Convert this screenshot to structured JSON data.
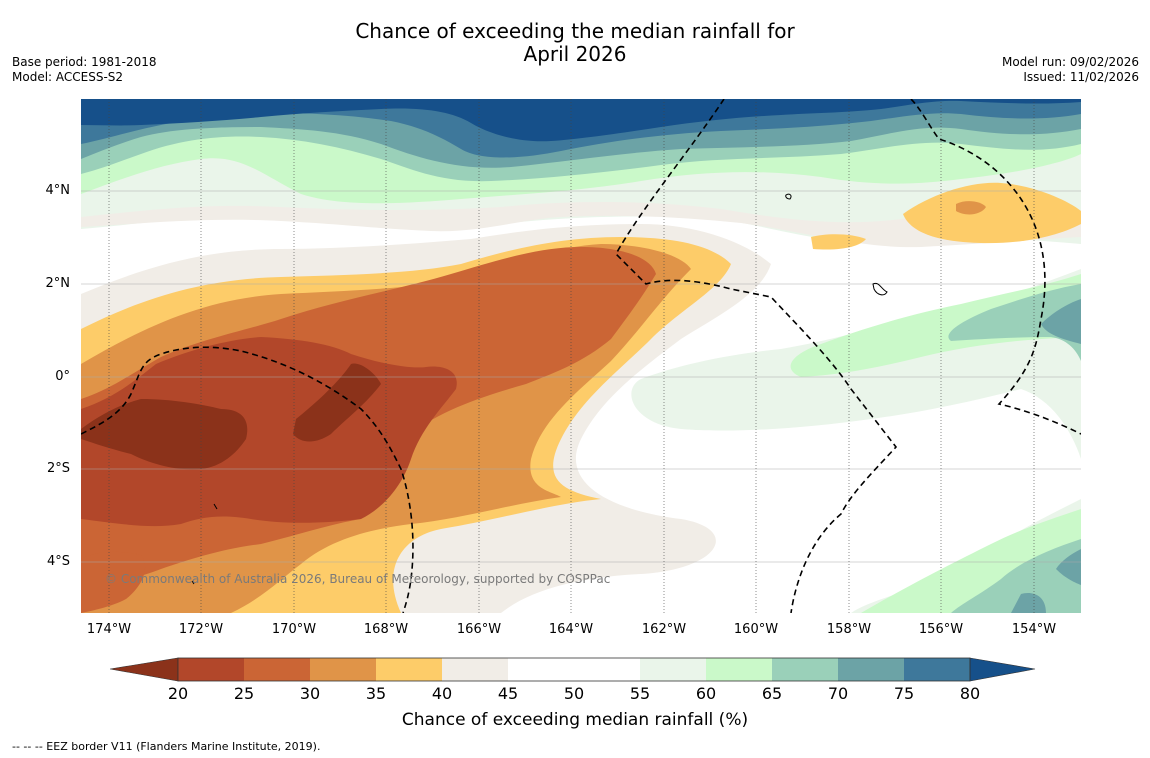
{
  "header": {
    "title_line1": "Chance of exceeding the median rainfall for",
    "title_line2": "April 2026",
    "base_period": "Base period: 1981-2018",
    "model": "Model: ACCESS-S2",
    "model_run": "Model run: 09/02/2026",
    "issued": "Issued: 11/02/2026"
  },
  "map": {
    "lat_labels": [
      "4°N",
      "2°N",
      "0°",
      "2°S",
      "4°S"
    ],
    "lon_labels": [
      "174°W",
      "172°W",
      "170°W",
      "168°W",
      "166°W",
      "164°W",
      "162°W",
      "160°W",
      "158°W",
      "156°W",
      "154°W"
    ],
    "copyright": "© Commonwealth of Australia 2026, Bureau of Meteorology, supported by COSPPac",
    "colors": {
      "lt20": "#8b321a",
      "c20_25": "#b2472a",
      "c25_30": "#cb6535",
      "c30_35": "#e09448",
      "c35_40": "#fdcc69",
      "c40_45": "#f1ede7",
      "c45_55": "#ffffff",
      "c55_60": "#eaf5ea",
      "c60_65": "#caf9c9",
      "c65_70": "#9ad0b9",
      "c70_75": "#6ca3a6",
      "c75_80": "#3e789b",
      "gt80": "#16508a"
    }
  },
  "colorbar": {
    "ticks": [
      "20",
      "25",
      "30",
      "35",
      "40",
      "45",
      "50",
      "55",
      "60",
      "65",
      "70",
      "75",
      "80"
    ],
    "label": "Chance of exceeding median rainfall (%)"
  },
  "footnote": "--  --  -- EEZ border V11 (Flanders Marine Institute, 2019)."
}
